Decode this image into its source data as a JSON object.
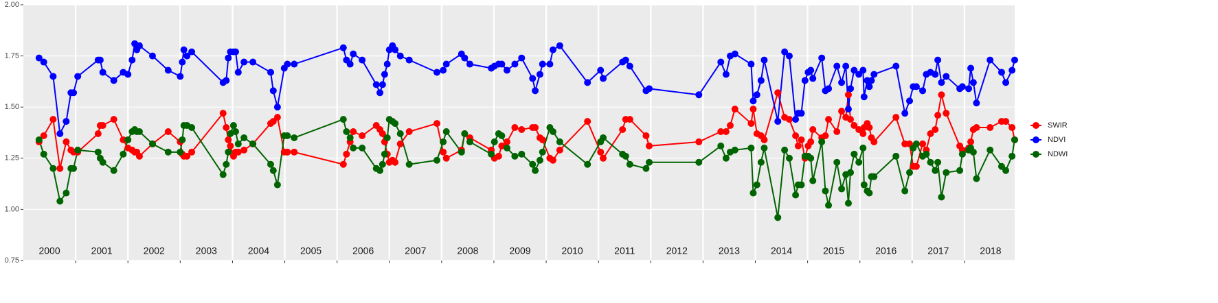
{
  "chart_data": {
    "type": "line",
    "x": [
      2000.3,
      2000.39,
      2000.57,
      2000.7,
      2000.82,
      2000.91,
      2000.96,
      2001.04,
      2001.43,
      2001.47,
      2001.52,
      2001.73,
      2001.91,
      2002.0,
      2002.08,
      2002.13,
      2002.17,
      2002.22,
      2002.47,
      2002.77,
      2003.0,
      2003.04,
      2003.07,
      2003.13,
      2003.22,
      2003.82,
      2003.88,
      2003.92,
      2003.96,
      2004.02,
      2004.06,
      2004.11,
      2004.22,
      2004.39,
      2004.73,
      2004.78,
      2004.86,
      2004.99,
      2005.05,
      2005.18,
      2006.12,
      2006.18,
      2006.25,
      2006.31,
      2006.48,
      2006.75,
      2006.82,
      2006.87,
      2006.91,
      2006.96,
      2007.0,
      2007.06,
      2007.11,
      2007.21,
      2007.38,
      2007.91,
      2008.03,
      2008.09,
      2008.38,
      2008.44,
      2008.54,
      2008.95,
      2009.01,
      2009.09,
      2009.15,
      2009.25,
      2009.4,
      2009.53,
      2009.74,
      2009.79,
      2009.88,
      2009.93,
      2010.07,
      2010.13,
      2010.26,
      2010.79,
      2011.04,
      2011.09,
      2011.46,
      2011.52,
      2011.6,
      2011.91,
      2011.97,
      2012.92,
      2013.34,
      2013.44,
      2013.52,
      2013.61,
      2013.92,
      2013.96,
      2014.03,
      2014.11,
      2014.17,
      2014.43,
      2014.56,
      2014.65,
      2014.77,
      2014.82,
      2014.88,
      2014.95,
      2015.01,
      2015.06,
      2015.1,
      2015.27,
      2015.34,
      2015.4,
      2015.56,
      2015.65,
      2015.73,
      2015.78,
      2015.82,
      2015.89,
      2015.98,
      2016.06,
      2016.08,
      2016.14,
      2016.18,
      2016.22,
      2016.27,
      2016.69,
      2016.86,
      2016.95,
      2017.02,
      2017.08,
      2017.2,
      2017.27,
      2017.35,
      2017.44,
      2017.49,
      2017.56,
      2017.65,
      2017.91,
      2017.96,
      2018.08,
      2018.12,
      2018.17,
      2018.23,
      2018.49,
      2018.71,
      2018.79,
      2018.91,
      2018.96
    ],
    "series": [
      {
        "name": "SWIR",
        "color": "#ff0000",
        "values": [
          1.33,
          1.36,
          1.44,
          1.2,
          1.33,
          1.29,
          1.28,
          1.28,
          1.37,
          1.41,
          1.41,
          1.44,
          1.34,
          1.3,
          1.29,
          1.28,
          1.28,
          1.26,
          1.32,
          1.38,
          1.33,
          1.27,
          1.26,
          1.26,
          1.28,
          1.47,
          1.4,
          1.34,
          1.31,
          1.26,
          1.28,
          1.28,
          1.29,
          1.32,
          1.42,
          1.43,
          1.45,
          1.28,
          1.28,
          1.28,
          1.22,
          1.27,
          1.33,
          1.38,
          1.36,
          1.41,
          1.39,
          1.37,
          1.33,
          1.27,
          1.23,
          1.24,
          1.23,
          1.32,
          1.38,
          1.42,
          1.28,
          1.25,
          1.29,
          1.37,
          1.35,
          1.29,
          1.25,
          1.26,
          1.31,
          1.33,
          1.4,
          1.39,
          1.4,
          1.4,
          1.35,
          1.34,
          1.25,
          1.24,
          1.29,
          1.43,
          1.28,
          1.25,
          1.39,
          1.44,
          1.44,
          1.36,
          1.31,
          1.33,
          1.38,
          1.38,
          1.41,
          1.49,
          1.42,
          1.49,
          1.37,
          1.36,
          1.34,
          1.57,
          1.45,
          1.44,
          1.36,
          1.31,
          1.34,
          1.25,
          1.31,
          1.33,
          1.39,
          1.35,
          1.36,
          1.44,
          1.38,
          1.48,
          1.45,
          1.56,
          1.44,
          1.41,
          1.39,
          1.37,
          1.4,
          1.42,
          1.4,
          1.35,
          1.33,
          1.45,
          1.32,
          1.32,
          1.21,
          1.21,
          1.32,
          1.29,
          1.37,
          1.39,
          1.46,
          1.56,
          1.47,
          1.31,
          1.29,
          1.3,
          1.33,
          1.39,
          1.4,
          1.4,
          1.43,
          1.43,
          1.4,
          1.34
        ]
      },
      {
        "name": "NDVI",
        "color": "#0000ff",
        "values": [
          1.74,
          1.72,
          1.65,
          1.37,
          1.43,
          1.57,
          1.57,
          1.65,
          1.73,
          1.73,
          1.67,
          1.63,
          1.67,
          1.66,
          1.73,
          1.81,
          1.78,
          1.8,
          1.75,
          1.68,
          1.65,
          1.72,
          1.78,
          1.75,
          1.77,
          1.62,
          1.63,
          1.74,
          1.77,
          1.77,
          1.77,
          1.67,
          1.72,
          1.72,
          1.67,
          1.58,
          1.5,
          1.69,
          1.71,
          1.71,
          1.79,
          1.73,
          1.71,
          1.76,
          1.73,
          1.61,
          1.57,
          1.61,
          1.66,
          1.71,
          1.78,
          1.8,
          1.78,
          1.75,
          1.73,
          1.67,
          1.68,
          1.71,
          1.76,
          1.74,
          1.71,
          1.69,
          1.7,
          1.71,
          1.71,
          1.68,
          1.71,
          1.74,
          1.64,
          1.58,
          1.66,
          1.71,
          1.71,
          1.78,
          1.8,
          1.62,
          1.68,
          1.64,
          1.72,
          1.73,
          1.7,
          1.58,
          1.59,
          1.56,
          1.72,
          1.66,
          1.75,
          1.76,
          1.71,
          1.53,
          1.56,
          1.63,
          1.73,
          1.43,
          1.77,
          1.75,
          1.44,
          1.47,
          1.47,
          1.63,
          1.67,
          1.68,
          1.64,
          1.74,
          1.58,
          1.59,
          1.7,
          1.62,
          1.7,
          1.49,
          1.59,
          1.68,
          1.66,
          1.68,
          1.55,
          1.63,
          1.6,
          1.63,
          1.66,
          1.7,
          1.47,
          1.53,
          1.6,
          1.6,
          1.58,
          1.66,
          1.67,
          1.66,
          1.73,
          1.62,
          1.65,
          1.59,
          1.6,
          1.59,
          1.69,
          1.62,
          1.52,
          1.73,
          1.67,
          1.62,
          1.68,
          1.73
        ]
      },
      {
        "name": "NDWI",
        "color": "#006400",
        "values": [
          1.34,
          1.27,
          1.2,
          1.04,
          1.08,
          1.2,
          1.2,
          1.29,
          1.28,
          1.25,
          1.23,
          1.19,
          1.27,
          1.34,
          1.38,
          1.39,
          1.38,
          1.38,
          1.32,
          1.28,
          1.28,
          1.34,
          1.41,
          1.41,
          1.4,
          1.17,
          1.22,
          1.28,
          1.37,
          1.41,
          1.38,
          1.32,
          1.35,
          1.32,
          1.22,
          1.19,
          1.12,
          1.36,
          1.36,
          1.35,
          1.44,
          1.38,
          1.35,
          1.3,
          1.3,
          1.2,
          1.19,
          1.22,
          1.27,
          1.35,
          1.44,
          1.43,
          1.42,
          1.37,
          1.22,
          1.24,
          1.33,
          1.38,
          1.28,
          1.37,
          1.33,
          1.27,
          1.33,
          1.37,
          1.36,
          1.3,
          1.26,
          1.27,
          1.22,
          1.19,
          1.24,
          1.28,
          1.4,
          1.38,
          1.33,
          1.22,
          1.33,
          1.35,
          1.27,
          1.26,
          1.22,
          1.2,
          1.23,
          1.23,
          1.31,
          1.25,
          1.28,
          1.29,
          1.3,
          1.08,
          1.12,
          1.23,
          1.3,
          0.96,
          1.29,
          1.25,
          1.07,
          1.12,
          1.12,
          1.26,
          1.26,
          1.25,
          1.14,
          1.33,
          1.09,
          1.02,
          1.23,
          1.1,
          1.17,
          1.03,
          1.18,
          1.27,
          1.23,
          1.3,
          1.12,
          1.09,
          1.08,
          1.16,
          1.16,
          1.26,
          1.09,
          1.18,
          1.3,
          1.32,
          1.26,
          1.27,
          1.23,
          1.19,
          1.23,
          1.06,
          1.18,
          1.19,
          1.27,
          1.29,
          1.3,
          1.28,
          1.15,
          1.29,
          1.21,
          1.19,
          1.26,
          1.34
        ]
      }
    ],
    "year_labels": [
      "2000",
      "2001",
      "2002",
      "2003",
      "2004",
      "2005",
      "2006",
      "2007",
      "2008",
      "2009",
      "2010",
      "2011",
      "2012",
      "2013",
      "2014",
      "2015",
      "2016",
      "2017",
      "2018"
    ],
    "xlim": [
      2000,
      2018.96
    ],
    "xticks": [
      2001,
      2002,
      2003,
      2004,
      2005,
      2006,
      2007,
      2008,
      2009,
      2010,
      2011,
      2012,
      2013,
      2014,
      2015,
      2016,
      2017,
      2018
    ],
    "ylim": [
      0.75,
      2.0
    ],
    "yticks": [
      0.75,
      {
        "value": 1.0,
        "label": "1.00"
      },
      1.25,
      {
        "value": 1.5,
        "label": "1.50"
      },
      1.75,
      {
        "value": 2.0,
        "label": "2.00"
      }
    ],
    "grid": true,
    "legend": "right"
  }
}
